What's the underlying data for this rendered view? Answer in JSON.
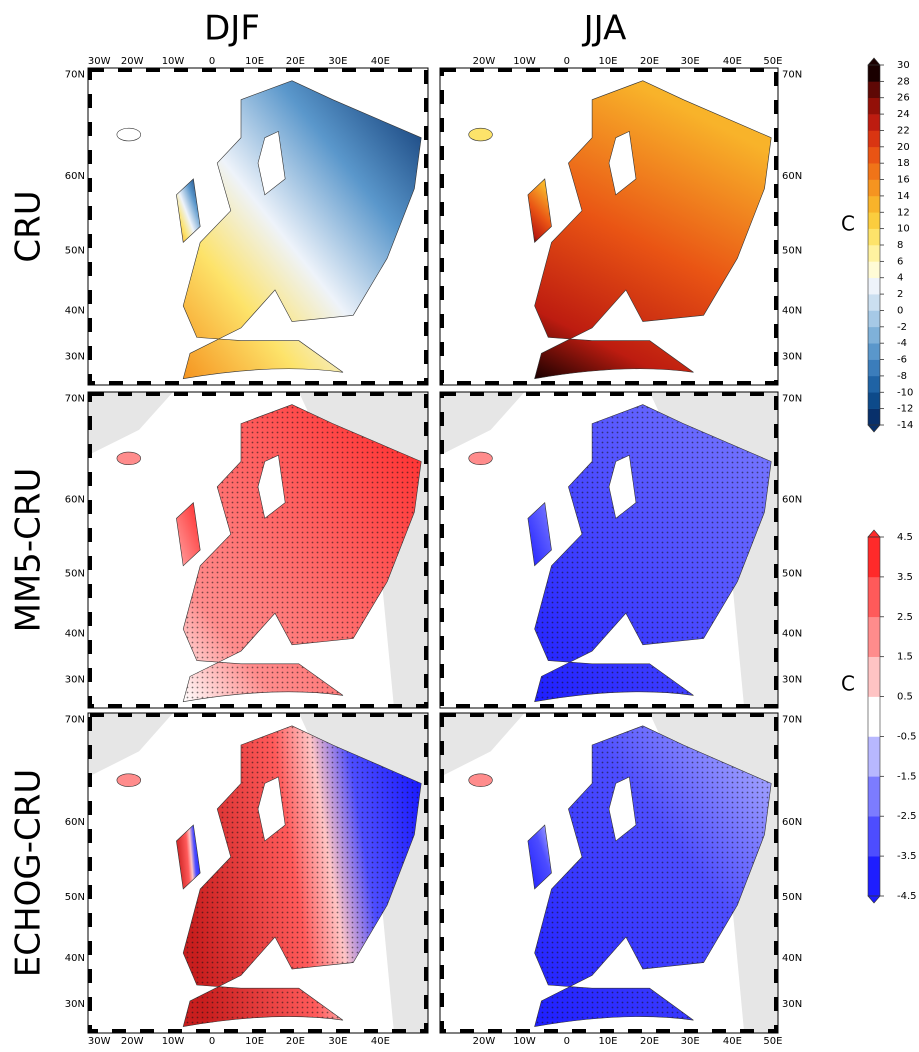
{
  "columns": [
    "DJF",
    "JJA"
  ],
  "rows": [
    "CRU",
    "MM5-CRU",
    "ECHOG-CRU"
  ],
  "lon_labels_left": [
    "30W",
    "20W",
    "10W",
    "0",
    "10E",
    "20E",
    "30E",
    "40E"
  ],
  "lon_labels_right": [
    "20W",
    "10W",
    "0",
    "10E",
    "20E",
    "30E",
    "40E",
    "50E"
  ],
  "lat_labels": [
    "70N",
    "60N",
    "50N",
    "40N",
    "30N"
  ],
  "colorbars": [
    {
      "unit": "C",
      "lim": [
        -14,
        30
      ],
      "ticks": [
        30,
        28,
        26,
        24,
        22,
        20,
        18,
        16,
        14,
        12,
        10,
        8,
        6,
        4,
        2,
        0,
        -2,
        -4,
        -6,
        -8,
        -10,
        -12,
        -14
      ],
      "colors": [
        "#08306b",
        "#0d4a8a",
        "#1f63a5",
        "#3b7dbb",
        "#5a97cb",
        "#7fb1d9",
        "#a6c9e6",
        "#cbdff0",
        "#eef3fa",
        "#fffbd6",
        "#fff2a0",
        "#fde36a",
        "#fbcd3e",
        "#f8b32a",
        "#f59420",
        "#f07418",
        "#e95414",
        "#d93512",
        "#bd1c10",
        "#931008",
        "#5e0805",
        "#1a0000"
      ]
    },
    {
      "unit": "C",
      "lim": [
        -4.5,
        4.5
      ],
      "ticks": [
        4.5,
        3.5,
        2.5,
        1.5,
        0.5,
        -0.5,
        -1.5,
        -2.5,
        -3.5,
        -4.5
      ],
      "colors": [
        "#1e1eff",
        "#4d4dff",
        "#7c7cff",
        "#b8b8ff",
        "#ffffff",
        "#ffc4c4",
        "#ff8c8c",
        "#ff5a5a",
        "#ff2a2a"
      ]
    }
  ]
}
